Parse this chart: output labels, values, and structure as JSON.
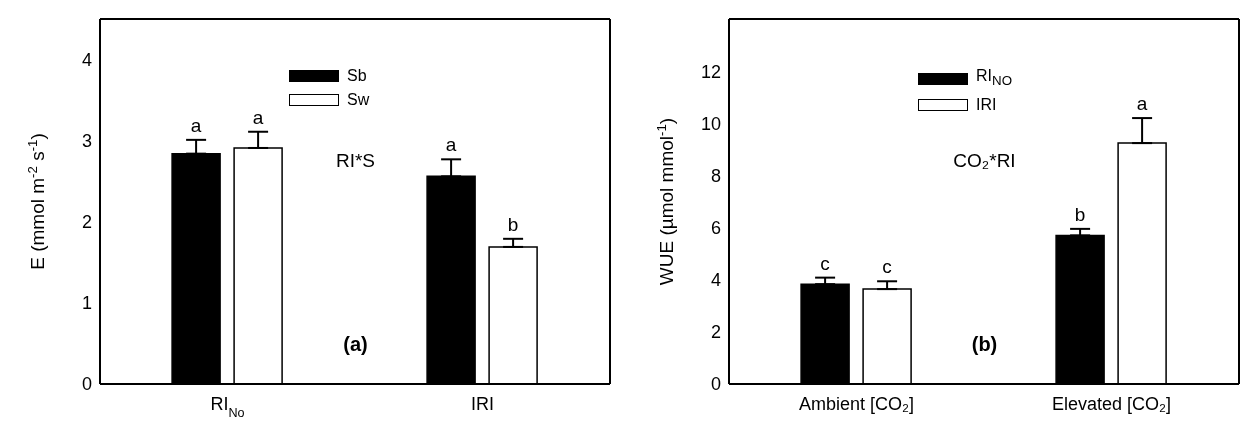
{
  "chart_data": [
    {
      "type": "bar",
      "ylabel": "E (mmol m$^{-2}$ s$^{-1}$)",
      "categories": [
        "RI$_{No}$",
        "IRI"
      ],
      "series": [
        {
          "name": "Sb",
          "color": "#000000",
          "values": [
            2.84,
            2.56
          ],
          "errors": [
            0.17,
            0.21
          ]
        },
        {
          "name": "Sw",
          "color": "#ffffff",
          "values": [
            2.91,
            1.69
          ],
          "errors": [
            0.2,
            0.1
          ]
        }
      ],
      "ylim": [
        0,
        4.5
      ],
      "yticks": [
        0,
        1,
        2,
        3,
        4
      ],
      "legend": "top",
      "grid": false,
      "annotations": [
        "a",
        "a",
        "a",
        "b",
        "RI*S",
        "(a)"
      ]
    },
    {
      "type": "bar",
      "ylabel": "WUE (µmol  mmol$^{-1}$)",
      "categories": [
        "Ambient [CO₂]",
        "Elevated [CO₂]"
      ],
      "series": [
        {
          "name": "RI$_{NO}$",
          "color": "#000000",
          "values": [
            3.83,
            5.7
          ],
          "errors": [
            0.25,
            0.25
          ]
        },
        {
          "name": "IRI",
          "color": "#ffffff",
          "values": [
            3.64,
            9.24
          ],
          "errors": [
            0.3,
            0.96
          ]
        }
      ],
      "ylim": [
        0,
        14
      ],
      "yticks": [
        0,
        2,
        4,
        6,
        8,
        10,
        12
      ],
      "legend": "top",
      "grid": false,
      "annotations": [
        "c",
        "c",
        "b",
        "a",
        "CO₂*RI",
        "(b)"
      ]
    }
  ]
}
